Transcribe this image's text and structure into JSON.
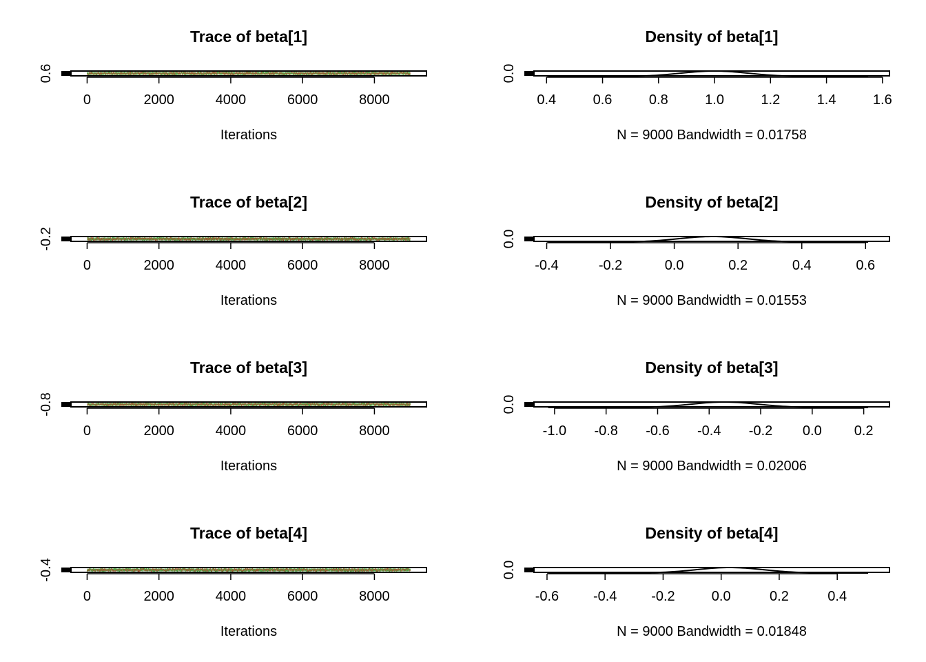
{
  "chart_data": [
    {
      "type": "line",
      "title": "Trace of beta[1]",
      "xlabel": "Iterations",
      "ylabel": "",
      "xlim": [
        -450,
        9450
      ],
      "xticks": [
        0,
        2000,
        4000,
        6000,
        8000
      ],
      "xtick_labels": [
        "0",
        "2000",
        "4000",
        "6000",
        "8000"
      ],
      "yticks": [
        0.6
      ],
      "ytick_labels": [
        "0.6"
      ],
      "x_range": [
        1,
        9000
      ],
      "series": [
        {
          "color": "#4daf4a"
        },
        {
          "color": "#e41a1c"
        }
      ],
      "grid": false
    },
    {
      "type": "line",
      "title": "Density of beta[1]",
      "xlabel": "N = 9000   Bandwidth = 0.01758",
      "ylabel": "",
      "xlim": [
        0.355,
        1.625
      ],
      "xticks": [
        0.4,
        0.6,
        0.8,
        1.0,
        1.2,
        1.4,
        1.6
      ],
      "xtick_labels": [
        "0.4",
        "0.6",
        "0.8",
        "1.0",
        "1.2",
        "1.4",
        "1.6"
      ],
      "yticks": [
        0.0
      ],
      "ytick_labels": [
        "0.0"
      ],
      "density_peak": 1.0,
      "grid": false
    },
    {
      "type": "line",
      "title": "Trace of beta[2]",
      "xlabel": "Iterations",
      "ylabel": "",
      "xlim": [
        -450,
        9450
      ],
      "xticks": [
        0,
        2000,
        4000,
        6000,
        8000
      ],
      "xtick_labels": [
        "0",
        "2000",
        "4000",
        "6000",
        "8000"
      ],
      "yticks": [
        -0.2
      ],
      "ytick_labels": [
        "-0.2"
      ],
      "x_range": [
        1,
        9000
      ],
      "series": [
        {
          "color": "#4daf4a"
        },
        {
          "color": "#e41a1c"
        }
      ],
      "grid": false
    },
    {
      "type": "line",
      "title": "Density of beta[2]",
      "xlabel": "N = 9000   Bandwidth = 0.01553",
      "ylabel": "",
      "xlim": [
        -0.44,
        0.675
      ],
      "xticks": [
        -0.4,
        -0.2,
        0.0,
        0.2,
        0.4,
        0.6
      ],
      "xtick_labels": [
        "-0.4",
        "-0.2",
        "0.0",
        "0.2",
        "0.4",
        "0.6"
      ],
      "yticks": [
        0.0
      ],
      "ytick_labels": [
        "0.0"
      ],
      "density_peak": 0.12,
      "grid": false
    },
    {
      "type": "line",
      "title": "Trace of beta[3]",
      "xlabel": "Iterations",
      "ylabel": "",
      "xlim": [
        -450,
        9450
      ],
      "xticks": [
        0,
        2000,
        4000,
        6000,
        8000
      ],
      "xtick_labels": [
        "0",
        "2000",
        "4000",
        "6000",
        "8000"
      ],
      "yticks": [
        -0.8
      ],
      "ytick_labels": [
        "-0.8"
      ],
      "x_range": [
        1,
        9000
      ],
      "series": [
        {
          "color": "#4daf4a"
        },
        {
          "color": "#e41a1c"
        }
      ],
      "grid": false
    },
    {
      "type": "line",
      "title": "Density of beta[3]",
      "xlabel": "N = 9000   Bandwidth = 0.02006",
      "ylabel": "",
      "xlim": [
        -1.08,
        0.3
      ],
      "xticks": [
        -1.0,
        -0.8,
        -0.6,
        -0.4,
        -0.2,
        0.0,
        0.2
      ],
      "xtick_labels": [
        "-1.0",
        "-0.8",
        "-0.6",
        "-0.4",
        "-0.2",
        "0.0",
        "0.2"
      ],
      "yticks": [
        0.0
      ],
      "ytick_labels": [
        "0.0"
      ],
      "density_peak": -0.34,
      "grid": false
    },
    {
      "type": "line",
      "title": "Trace of beta[4]",
      "xlabel": "Iterations",
      "ylabel": "",
      "xlim": [
        -450,
        9450
      ],
      "xticks": [
        0,
        2000,
        4000,
        6000,
        8000
      ],
      "xtick_labels": [
        "0",
        "2000",
        "4000",
        "6000",
        "8000"
      ],
      "yticks": [
        -0.4
      ],
      "ytick_labels": [
        "-0.4"
      ],
      "x_range": [
        1,
        9000
      ],
      "series": [
        {
          "color": "#4daf4a"
        },
        {
          "color": "#e41a1c"
        }
      ],
      "grid": false
    },
    {
      "type": "line",
      "title": "Density of beta[4]",
      "xlabel": "N = 9000   Bandwidth = 0.01848",
      "ylabel": "",
      "xlim": [
        -0.645,
        0.58
      ],
      "xticks": [
        -0.6,
        -0.4,
        -0.2,
        0.0,
        0.2,
        0.4
      ],
      "xtick_labels": [
        "-0.6",
        "-0.4",
        "-0.2",
        "0.0",
        "0.2",
        "0.4"
      ],
      "yticks": [
        0.0
      ],
      "ytick_labels": [
        "0.0"
      ],
      "density_peak": 0.03,
      "grid": false
    }
  ]
}
